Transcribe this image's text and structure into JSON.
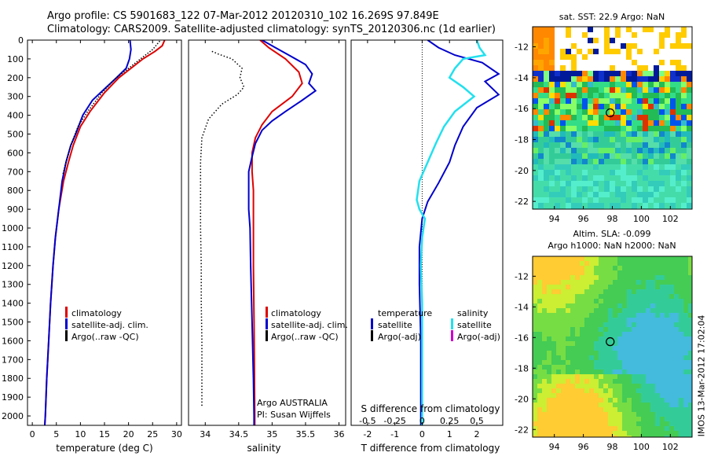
{
  "header": {
    "line1": "Argo profile: CS 5901683_122 07-Mar-2012 20120310_102 16.269S 97.849E",
    "line2": "Climatology: CARS2009. Satellite-adjusted climatology: synTS_20120306.nc (1d earlier)"
  },
  "side_stamp": "IMOS 13-Mar-2012 17:02:04",
  "colors": {
    "climatology": "#dd0000",
    "satellite": "#0000cc",
    "argo": "#000000",
    "satellite_salinity": "#22e0ee",
    "argo_adj_salinity": "#cc00cc"
  },
  "chart_data": [
    {
      "id": "temperature",
      "type": "line",
      "xlabel": "temperature (deg C)",
      "ylabel": "",
      "xlim": [
        -1,
        31
      ],
      "ylim": [
        2050,
        0
      ],
      "x_ticks": [
        "0",
        "5",
        "10",
        "15",
        "20",
        "25",
        "30"
      ],
      "x_tick_values": [
        0,
        5,
        10,
        15,
        20,
        25,
        30
      ],
      "y_ticks": [
        "0",
        "100",
        "200",
        "300",
        "400",
        "500",
        "600",
        "700",
        "800",
        "900",
        "1000",
        "1100",
        "1200",
        "1300",
        "1400",
        "1500",
        "1600",
        "1700",
        "1800",
        "1900",
        "2000"
      ],
      "legend": [
        "climatology",
        "satellite-adj. clim.",
        "Argo(..raw -QC)"
      ],
      "series": [
        {
          "name": "climatology",
          "color": "#dd0000",
          "points": [
            [
              27.5,
              0
            ],
            [
              27,
              30
            ],
            [
              25.5,
              60
            ],
            [
              23,
              100
            ],
            [
              20.5,
              150
            ],
            [
              18,
              200
            ],
            [
              15,
              280
            ],
            [
              12,
              380
            ],
            [
              10,
              460
            ],
            [
              8.5,
              560
            ],
            [
              7.5,
              650
            ],
            [
              6.5,
              750
            ],
            [
              5.5,
              900
            ],
            [
              4.8,
              1050
            ],
            [
              4.3,
              1200
            ],
            [
              3.8,
              1400
            ],
            [
              3.4,
              1600
            ],
            [
              3.0,
              1800
            ],
            [
              2.7,
              2000
            ],
            [
              2.6,
              2050
            ]
          ]
        },
        {
          "name": "satellite-adj. clim.",
          "color": "#0000cc",
          "points": [
            [
              20.3,
              0
            ],
            [
              20.5,
              50
            ],
            [
              20.2,
              100
            ],
            [
              19.5,
              150
            ],
            [
              17.5,
              200
            ],
            [
              15,
              260
            ],
            [
              12.5,
              320
            ],
            [
              10.5,
              400
            ],
            [
              9,
              500
            ],
            [
              8,
              560
            ],
            [
              7,
              650
            ],
            [
              6.2,
              750
            ],
            [
              5.5,
              900
            ],
            [
              4.8,
              1050
            ],
            [
              4.3,
              1200
            ],
            [
              3.8,
              1400
            ],
            [
              3.4,
              1600
            ],
            [
              3.0,
              1800
            ],
            [
              2.7,
              2000
            ],
            [
              2.6,
              2050
            ]
          ]
        },
        {
          "name": "Argo(..raw -QC)",
          "color": "#000000",
          "dashed": true,
          "points": [
            [
              26.5,
              5
            ],
            [
              25,
              50
            ],
            [
              22.5,
              100
            ],
            [
              20,
              150
            ],
            [
              17.5,
              200
            ],
            [
              14.5,
              280
            ],
            [
              11.5,
              380
            ],
            [
              9.5,
              460
            ],
            [
              8,
              560
            ],
            [
              7,
              650
            ],
            [
              6.3,
              720
            ]
          ]
        }
      ]
    },
    {
      "id": "salinity",
      "type": "line",
      "xlabel": "salinity",
      "ylabel": "",
      "xlim": [
        33.75,
        36.1
      ],
      "ylim": [
        2050,
        0
      ],
      "x_ticks": [
        "34",
        "34.5",
        "35",
        "35.5",
        "36"
      ],
      "x_tick_values": [
        34,
        34.5,
        35,
        35.5,
        36
      ],
      "legend": [
        "climatology",
        "satellite-adj. clim.",
        "Argo(..raw -QC)"
      ],
      "annotations": [
        "Argo AUSTRALIA",
        "PI: Susan Wijffels"
      ],
      "series": [
        {
          "name": "climatology",
          "color": "#dd0000",
          "points": [
            [
              34.82,
              0
            ],
            [
              34.95,
              40
            ],
            [
              35.2,
              100
            ],
            [
              35.4,
              170
            ],
            [
              35.45,
              230
            ],
            [
              35.3,
              300
            ],
            [
              35.0,
              380
            ],
            [
              34.85,
              450
            ],
            [
              34.75,
              520
            ],
            [
              34.7,
              600
            ],
            [
              34.7,
              700
            ],
            [
              34.72,
              800
            ],
            [
              34.72,
              1000
            ],
            [
              34.72,
              1200
            ],
            [
              34.73,
              1500
            ],
            [
              34.74,
              2000
            ],
            [
              34.74,
              2050
            ]
          ]
        },
        {
          "name": "satellite-adj. clim.",
          "color": "#0000cc",
          "points": [
            [
              34.85,
              0
            ],
            [
              35.05,
              40
            ],
            [
              35.25,
              80
            ],
            [
              35.5,
              130
            ],
            [
              35.6,
              180
            ],
            [
              35.55,
              230
            ],
            [
              35.65,
              270
            ],
            [
              35.45,
              320
            ],
            [
              35.2,
              380
            ],
            [
              35.0,
              430
            ],
            [
              34.85,
              480
            ],
            [
              34.75,
              550
            ],
            [
              34.7,
              620
            ],
            [
              34.65,
              700
            ],
            [
              34.65,
              800
            ],
            [
              34.65,
              900
            ],
            [
              34.67,
              1000
            ],
            [
              34.68,
              1200
            ],
            [
              34.7,
              1500
            ],
            [
              34.72,
              1800
            ],
            [
              34.73,
              2000
            ],
            [
              34.73,
              2050
            ]
          ]
        },
        {
          "name": "Argo(..raw -QC)",
          "color": "#000000",
          "dashed": true,
          "points": [
            [
              34.1,
              60
            ],
            [
              34.2,
              75
            ],
            [
              34.4,
              100
            ],
            [
              34.55,
              150
            ],
            [
              34.52,
              200
            ],
            [
              34.58,
              250
            ],
            [
              34.48,
              290
            ],
            [
              34.25,
              340
            ],
            [
              34.05,
              420
            ],
            [
              33.95,
              520
            ],
            [
              33.93,
              650
            ],
            [
              33.93,
              800
            ],
            [
              33.93,
              1000
            ],
            [
              33.94,
              1200
            ],
            [
              33.94,
              1400
            ],
            [
              33.95,
              1600
            ],
            [
              33.95,
              1800
            ],
            [
              33.95,
              1950
            ]
          ]
        }
      ]
    },
    {
      "id": "difference",
      "type": "line",
      "xlabel": "T difference from climatology",
      "xlabel_top": "S difference from climatology",
      "ylabel": "",
      "xlim": [
        -2.6,
        2.95
      ],
      "ylim": [
        2050,
        0
      ],
      "x_ticks": [
        "-2",
        "-1",
        "0",
        "1",
        "2"
      ],
      "x_tick_values": [
        -2,
        -1,
        0,
        1,
        2
      ],
      "x_ticks_top": [
        "-0.5",
        "-0.25",
        "0",
        "0.25",
        "0.5"
      ],
      "x_tick_values_top": [
        -2,
        -1,
        0,
        1,
        2
      ],
      "legend_titles": [
        "temperature",
        "salinity"
      ],
      "legend_left": [
        "satellite",
        "Argo(-adj)"
      ],
      "legend_right": [
        "satellite",
        "Argo(-adj)"
      ],
      "series": [
        {
          "name": "temperature satellite",
          "color": "#0000cc",
          "points": [
            [
              0.2,
              0
            ],
            [
              0.6,
              40
            ],
            [
              1.2,
              80
            ],
            [
              2.2,
              120
            ],
            [
              2.8,
              180
            ],
            [
              2.3,
              220
            ],
            [
              2.8,
              290
            ],
            [
              2.0,
              360
            ],
            [
              1.5,
              460
            ],
            [
              1.2,
              560
            ],
            [
              1.0,
              650
            ],
            [
              0.6,
              760
            ],
            [
              0.2,
              860
            ],
            [
              0,
              950
            ],
            [
              -0.1,
              1100
            ],
            [
              -0.1,
              1300
            ],
            [
              -0.05,
              1600
            ],
            [
              -0.05,
              1800
            ],
            [
              -0.05,
              2000
            ],
            [
              -0.05,
              2050
            ]
          ]
        },
        {
          "name": "salinity satellite",
          "color": "#22e0ee",
          "points": [
            [
              2.0,
              0
            ],
            [
              2.1,
              40
            ],
            [
              2.3,
              80
            ],
            [
              1.5,
              100
            ],
            [
              1.2,
              150
            ],
            [
              1.0,
              200
            ],
            [
              1.5,
              250
            ],
            [
              1.9,
              300
            ],
            [
              1.2,
              380
            ],
            [
              0.8,
              460
            ],
            [
              0.5,
              550
            ],
            [
              0.2,
              650
            ],
            [
              -0.1,
              750
            ],
            [
              -0.2,
              850
            ],
            [
              -0.1,
              900
            ],
            [
              0.1,
              950
            ],
            [
              0.0,
              1050
            ],
            [
              -0.05,
              1200
            ],
            [
              0.0,
              1400
            ],
            [
              0.0,
              1600
            ],
            [
              0.0,
              1800
            ],
            [
              0.0,
              2000
            ],
            [
              0.0,
              2050
            ]
          ]
        }
      ]
    },
    {
      "id": "sst_map",
      "type": "heatmap",
      "title": "sat. SST: 22.9 Argo: NaN",
      "x_ticks": [
        "94",
        "96",
        "98",
        "100",
        "102"
      ],
      "x_tick_values": [
        94,
        96,
        98,
        100,
        102
      ],
      "y_ticks": [
        "-12",
        "-14",
        "-16",
        "-18",
        "-20",
        "-22"
      ],
      "y_tick_values": [
        -12,
        -14,
        -16,
        -18,
        -20,
        -22
      ],
      "xlim": [
        92.5,
        103.5
      ],
      "ylim": [
        -22.5,
        -10.7
      ],
      "marker": [
        97.85,
        -16.27
      ]
    },
    {
      "id": "sla_map",
      "type": "heatmap",
      "title_line1": "Altim. SLA: -0.099",
      "title_line2": "Argo h1000: NaN h2000: NaN",
      "x_ticks": [
        "94",
        "96",
        "98",
        "100",
        "102"
      ],
      "x_tick_values": [
        94,
        96,
        98,
        100,
        102
      ],
      "y_ticks": [
        "-12",
        "-14",
        "-16",
        "-18",
        "-20",
        "-22"
      ],
      "y_tick_values": [
        -12,
        -14,
        -16,
        -18,
        -20,
        -22
      ],
      "xlim": [
        92.5,
        103.5
      ],
      "ylim": [
        -22.5,
        -10.7
      ],
      "marker": [
        97.85,
        -16.27
      ]
    }
  ]
}
